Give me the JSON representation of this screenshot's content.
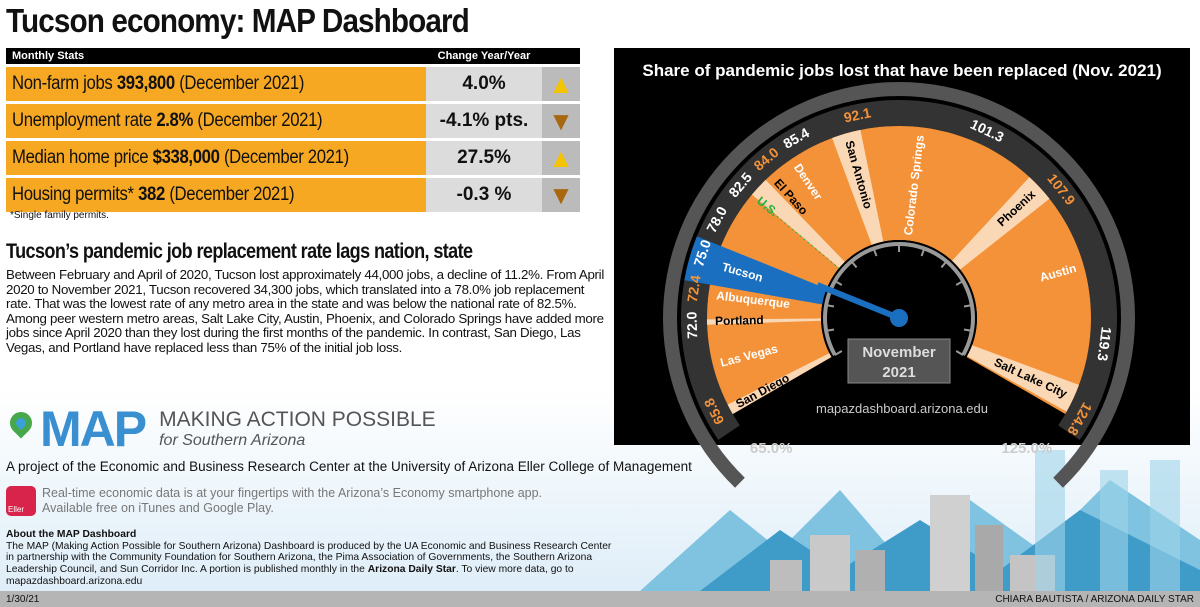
{
  "title": "Tucson economy: MAP Dashboard",
  "stats": {
    "header_left": "Monthly Stats",
    "header_right": "Change Year/Year",
    "rows": [
      {
        "label": "Non-farm jobs",
        "value": "393,800",
        "period": "(December 2021)",
        "change": "4.0%",
        "direction": "up"
      },
      {
        "label": "Unemployment rate",
        "value": "2.8%",
        "period": "(December 2021)",
        "change": "-4.1% pts.",
        "direction": "down"
      },
      {
        "label": "Median home price",
        "value": "$338,000",
        "period": "(December 2021)",
        "change": "27.5%",
        "direction": "up"
      },
      {
        "label": "Housing permits*",
        "value": "382",
        "period": "(December 2021)",
        "change": "-0.3 %",
        "direction": "down"
      }
    ],
    "footnote": "*Single family permits."
  },
  "article": {
    "heading": "Tucson’s pandemic job replacement rate lags nation, state",
    "body": "Between February and April of 2020, Tucson lost approximately 44,000 jobs, a decline of 11.2%. From April 2020 to November 2021, Tucson recovered 34,300 jobs, which translated into a 78.0% job replacement rate. That was the lowest rate of any metro area in the state and was below the national rate of 82.5%. Among peer western metro areas, Salt Lake City, Austin, Phoenix, and Colorado Springs have added more jobs since April 2020 than they lost during the first months of the pandemic. In contrast, San Diego, Las Vegas, and Portland have replaced less than 75% of the initial job loss."
  },
  "logo": {
    "mark": "MAP",
    "line1": "MAKING ACTION POSSIBLE",
    "line2": "for Southern Arizona"
  },
  "project": "A project of the Economic and Business Research Center at the University of Arizona Eller College of Management",
  "app": {
    "icon_text": "Eller",
    "line1": "Real-time economic data is at your fingertips with the Arizona’s Economy smartphone app.",
    "line2": "Available free on iTunes and Google Play."
  },
  "about": {
    "heading": "About the MAP Dashboard",
    "body_pre": "The MAP (Making Action Possible for Southern Arizona) Dashboard is produced by the UA Economic and Business Research Center in partnership with the Community Foundation for Southern Arizona, the Pima Association of Governments, the Southern Arizona Leadership Council, and Sun Corridor Inc. A portion is published monthly in the ",
    "body_bold": "Arizona Daily Star",
    "body_post": ". To view more data, go to mapazdashboard.arizona.edu"
  },
  "footer": {
    "date": "1/30/21",
    "credit": "CHIARA BAUTISTA / ARIZONA DAILY STAR"
  },
  "colors": {
    "orange": "#f7a823",
    "chart_orange": "#f39239",
    "peach": "#fbd8b5",
    "tucson_blue": "#1a6fc0",
    "us_green": "#27b040"
  },
  "chart_data": {
    "type": "radial-bar",
    "title": "Share of pandemic jobs lost that have been replaced (Nov. 2021)",
    "range": [
      65,
      125
    ],
    "range_labels": [
      "65.0%",
      "125.0%"
    ],
    "center_label": [
      "November",
      "2021"
    ],
    "source": "mapazdashboard.arizona.edu",
    "categories": [
      "San Diego",
      "Las Vegas",
      "Portland",
      "Albuquerque",
      "Tucson",
      "U.S.",
      "El Paso",
      "Denver",
      "San Antonio",
      "Colorado Springs",
      "Phoenix",
      "Austin",
      "Salt Lake City"
    ],
    "values": [
      65.8,
      72.0,
      72.4,
      75.0,
      78.0,
      82.5,
      84.0,
      85.4,
      92.1,
      101.3,
      107.9,
      119.3,
      124.8
    ],
    "value_labels": [
      "65.8",
      "72.0",
      "72.4",
      "75.0",
      "78.0",
      "82.5",
      "84.0",
      "85.4",
      "92.1",
      "101.3",
      "107.9",
      "119.3",
      "124.8"
    ]
  }
}
